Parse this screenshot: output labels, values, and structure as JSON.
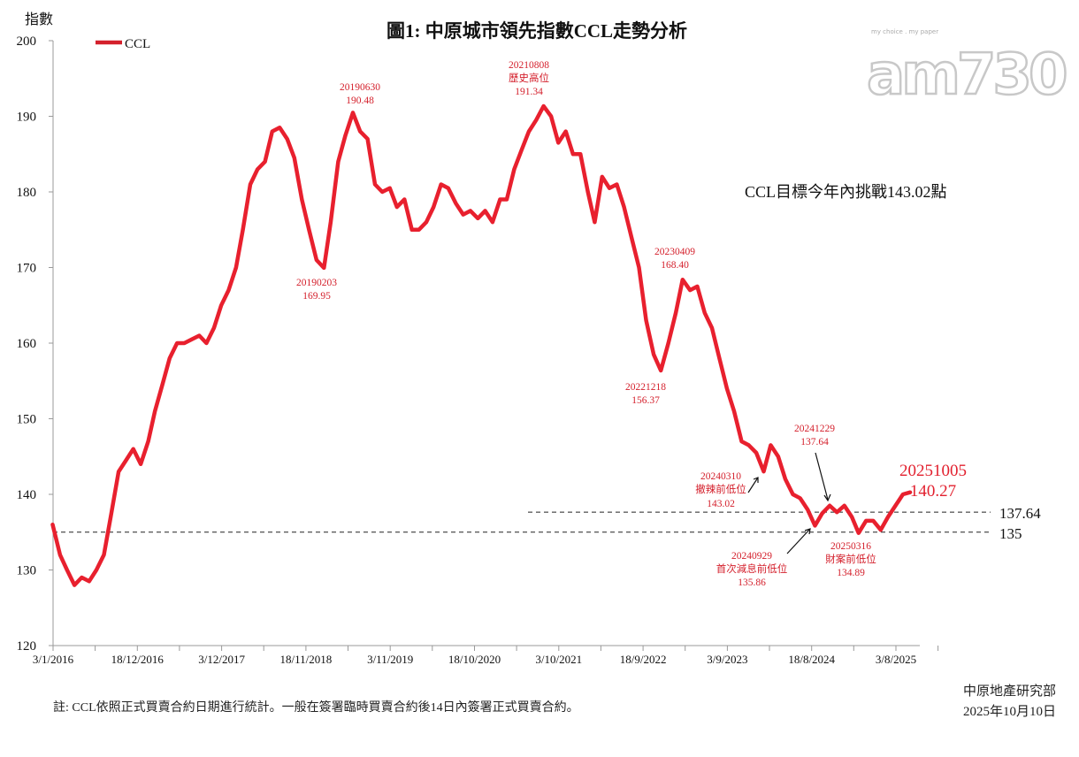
{
  "chart_data": {
    "type": "line",
    "title": "圖1: 中原城市領先指數CCL走勢分析",
    "ylabel": "指數",
    "xlabel": "",
    "ylim": [
      120,
      200
    ],
    "yticks": [
      120,
      130,
      140,
      150,
      160,
      170,
      180,
      190,
      200
    ],
    "xticks": [
      {
        "date": "2016-01-03",
        "label": "3/1/2016"
      },
      {
        "date": "2016-12-18",
        "label": "18/12/2016"
      },
      {
        "date": "2017-12-03",
        "label": "3/12/2017"
      },
      {
        "date": "2018-11-18",
        "label": "18/11/2018"
      },
      {
        "date": "2019-11-03",
        "label": "3/11/2019"
      },
      {
        "date": "2020-10-18",
        "label": "18/10/2020"
      },
      {
        "date": "2021-10-03",
        "label": "3/10/2021"
      },
      {
        "date": "2022-09-18",
        "label": "18/9/2022"
      },
      {
        "date": "2023-09-03",
        "label": "3/9/2023"
      },
      {
        "date": "2024-08-18",
        "label": "18/8/2024"
      },
      {
        "date": "2025-08-03",
        "label": "3/8/2025"
      }
    ],
    "grid": false,
    "legend_position": "top-left",
    "series": [
      {
        "name": "CCL",
        "color": "#e8202e",
        "start_month": "2016-01",
        "monthly_values": [
          136,
          132,
          130,
          128,
          129,
          128.5,
          130,
          132,
          137.5,
          143,
          144.5,
          146,
          144,
          147,
          151,
          154.5,
          158,
          160,
          160,
          160.5,
          161,
          160,
          162,
          165,
          167,
          170,
          175,
          181,
          183,
          184,
          188,
          188.5,
          187,
          184.5,
          179,
          175,
          171,
          169.95,
          176,
          184,
          187.5,
          190.48,
          188,
          187,
          181,
          180,
          180.5,
          178,
          179,
          175,
          175,
          176,
          178,
          181,
          180.5,
          178.5,
          177,
          177.5,
          176.5,
          177.5,
          176,
          179,
          179,
          183,
          185.5,
          188,
          189.5,
          191.34,
          190,
          186.5,
          188,
          185,
          185,
          180,
          176,
          182,
          180.5,
          181,
          178,
          174,
          170,
          163,
          158.5,
          156.37,
          160,
          164,
          168.4,
          167,
          167.5,
          164,
          162,
          158,
          154,
          151,
          147,
          146.5,
          145.5,
          143.02,
          146.5,
          145,
          142,
          140,
          139.5,
          138,
          135.86,
          137.5,
          138.5,
          137.64,
          138.5,
          137,
          134.89,
          136.5,
          136.5,
          135.3,
          137,
          138.5,
          140,
          140.27
        ]
      }
    ],
    "reference_lines": [
      {
        "value": 137.64,
        "label": "137.64",
        "style": "dashed"
      },
      {
        "value": 135,
        "label": "135",
        "style": "dashed"
      }
    ],
    "annotations": {
      "a2019_06": {
        "date": "20190630",
        "value": "190.48"
      },
      "a2019_02": {
        "date": "20190203",
        "value": "169.95"
      },
      "a2021_08": {
        "date": "20210808",
        "note": "歷史高位",
        "value": "191.34"
      },
      "a2023_04": {
        "date": "20230409",
        "value": "168.40"
      },
      "a2022_12": {
        "date": "20221218",
        "value": "156.37"
      },
      "a2024_03": {
        "date": "20240310",
        "note": "撤辣前低位",
        "value": "143.02"
      },
      "a2024_12": {
        "date": "20241229",
        "value": "137.64"
      },
      "a2024_09": {
        "date": "20240929",
        "note": "首次減息前低位",
        "value": "135.86"
      },
      "a2025_03": {
        "date": "20250316",
        "note": "財案前低位",
        "value": "134.89"
      },
      "a2025_10": {
        "date": "20251005",
        "value": "140.27"
      }
    },
    "target_note": "CCL目標今年內挑戰143.02點"
  },
  "footnote": "註: CCL依照正式買賣合約日期進行統計。一般在簽署臨時買賣合約後14日內簽署正式買賣合約。",
  "source": {
    "org": "中原地產研究部",
    "date": "2025年10月10日"
  },
  "logo": {
    "text": "am730",
    "tagline": "my choice . my paper"
  }
}
